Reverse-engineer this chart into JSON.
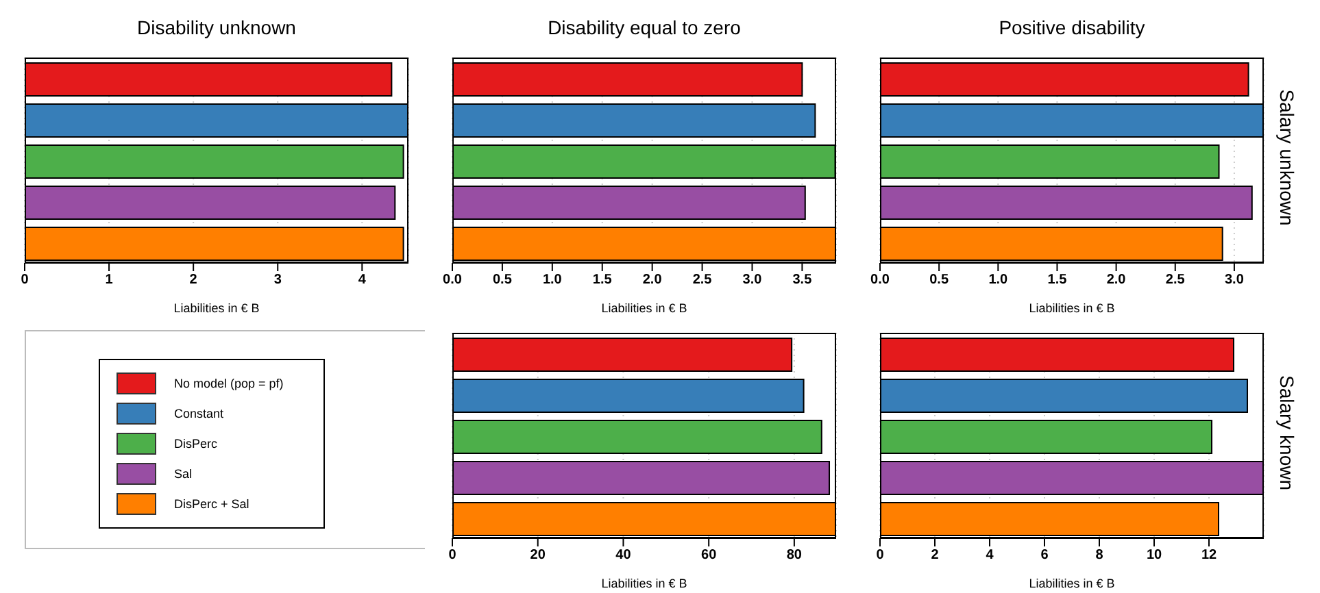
{
  "chart_data": [
    {
      "type": "bar",
      "orientation": "horizontal",
      "title": "Disability unknown",
      "xlabel": "Liabilities in € B",
      "categories": [
        null
      ],
      "xlim": [
        0,
        4.55
      ],
      "xticks": [
        0,
        1,
        2,
        3,
        4
      ],
      "grid": "x",
      "tick_labels": "x",
      "series": [
        {
          "color": "#e41a1c",
          "values": [
            4.35
          ]
        },
        {
          "color": "#377eb8",
          "values": [
            4.55
          ]
        },
        {
          "color": "#4daf4a",
          "values": [
            4.49
          ]
        },
        {
          "color": "#984ea3",
          "values": [
            4.39
          ]
        },
        {
          "color": "#ff7f00",
          "values": [
            4.49
          ]
        }
      ]
    },
    {
      "type": "bar",
      "orientation": "horizontal",
      "title": "Disability equal to zero",
      "xlabel": "Liabilities in € B",
      "categories": [
        null
      ],
      "xlim": [
        0,
        3.84
      ],
      "xticks": [
        {
          "value": 0,
          "label": "0.0"
        },
        0.5,
        {
          "value": 1,
          "label": "1.0"
        },
        1.5,
        {
          "value": 2,
          "label": "2.0"
        },
        2.5,
        {
          "value": 3,
          "label": "3.0"
        },
        3.5
      ],
      "grid": "x",
      "tick_labels": "x",
      "series": [
        {
          "color": "#e41a1c",
          "values": [
            3.5
          ]
        },
        {
          "color": "#377eb8",
          "values": [
            3.63
          ]
        },
        {
          "color": "#4daf4a",
          "values": [
            3.83
          ]
        },
        {
          "color": "#984ea3",
          "values": [
            3.53
          ]
        },
        {
          "color": "#ff7f00",
          "values": [
            3.84
          ]
        }
      ]
    },
    {
      "type": "bar",
      "orientation": "horizontal",
      "title": "Positive disability",
      "xlabel": "Liabilities in € B",
      "y2label": "Salary unknown",
      "categories": [
        null
      ],
      "xlim": [
        0,
        3.25
      ],
      "xticks": [
        {
          "value": 0,
          "label": "0.0"
        },
        0.5,
        {
          "value": 1,
          "label": "1.0"
        },
        1.5,
        {
          "value": 2,
          "label": "2.0"
        },
        2.5,
        {
          "value": 3,
          "label": "3.0"
        }
      ],
      "grid": "x",
      "tick_labels": "x",
      "series": [
        {
          "color": "#e41a1c",
          "values": [
            3.12
          ]
        },
        {
          "color": "#377eb8",
          "values": [
            3.25
          ]
        },
        {
          "color": "#4daf4a",
          "values": [
            2.87
          ]
        },
        {
          "color": "#984ea3",
          "values": [
            3.15
          ]
        },
        {
          "color": "#ff7f00",
          "values": [
            2.9
          ]
        }
      ]
    },
    {
      "type": "bar",
      "orientation": "horizontal",
      "xlabel": "Liabilities in € B",
      "categories": [
        null
      ],
      "xlim": [
        0,
        89.8
      ],
      "xticks": [
        0,
        20,
        40,
        60,
        80
      ],
      "grid": "x",
      "tick_labels": "x",
      "legend": "left",
      "series": [
        {
          "name": "No model (pop = pf)",
          "color": "#e41a1c",
          "values": [
            79.4
          ]
        },
        {
          "name": "Constant",
          "color": "#377eb8",
          "values": [
            82.2
          ]
        },
        {
          "name": "DisPerc",
          "color": "#4daf4a",
          "values": [
            86.4
          ]
        },
        {
          "name": "Sal",
          "color": "#984ea3",
          "values": [
            88.2
          ]
        },
        {
          "name": "DisPerc + Sal",
          "color": "#ff7f00",
          "values": [
            89.8
          ]
        }
      ]
    },
    {
      "type": "bar",
      "orientation": "horizontal",
      "xlabel": "Liabilities in € B",
      "y2label": "Salary known",
      "categories": [
        null
      ],
      "xlim": [
        0,
        14.0
      ],
      "xticks": [
        0,
        2,
        4,
        6,
        8,
        10,
        12
      ],
      "grid": "x",
      "tick_labels": "x",
      "series": [
        {
          "color": "#e41a1c",
          "values": [
            12.9
          ]
        },
        {
          "color": "#377eb8",
          "values": [
            13.4
          ]
        },
        {
          "color": "#4daf4a",
          "values": [
            12.1
          ]
        },
        {
          "color": "#984ea3",
          "values": [
            14.0
          ]
        },
        {
          "color": "#ff7f00",
          "values": [
            12.35
          ]
        }
      ]
    }
  ]
}
